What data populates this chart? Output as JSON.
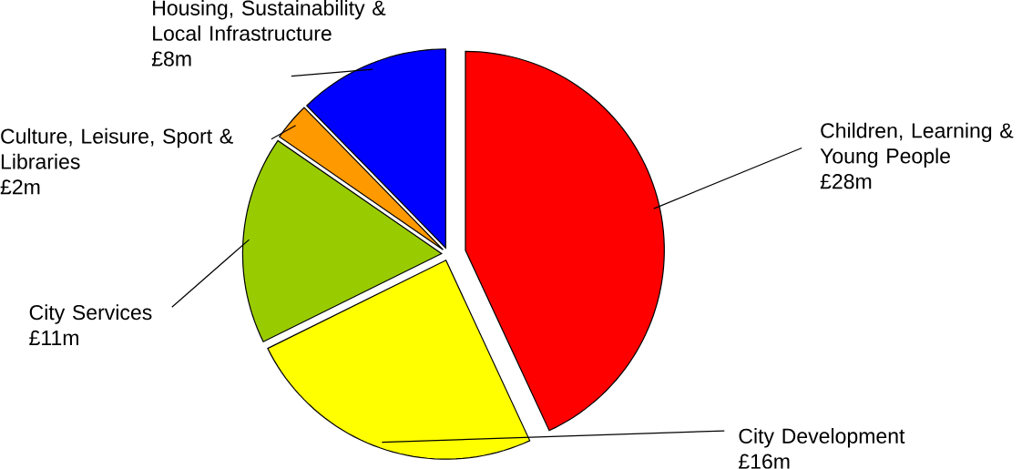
{
  "chart_data": {
    "type": "pie",
    "categories": [
      "Children, Learning & Young People",
      "City Development",
      "City Services",
      "Culture, Leisure, Sport & Libraries",
      "Housing, Sustainability & Local Infrastructure"
    ],
    "values": [
      28,
      16,
      11,
      2,
      8
    ],
    "colors": [
      "#ff0000",
      "#ffff00",
      "#99cc00",
      "#ff9900",
      "#0000ff"
    ],
    "value_labels": [
      "£28m",
      "£16m",
      "£11m",
      "£2m",
      "£8m"
    ]
  }
}
